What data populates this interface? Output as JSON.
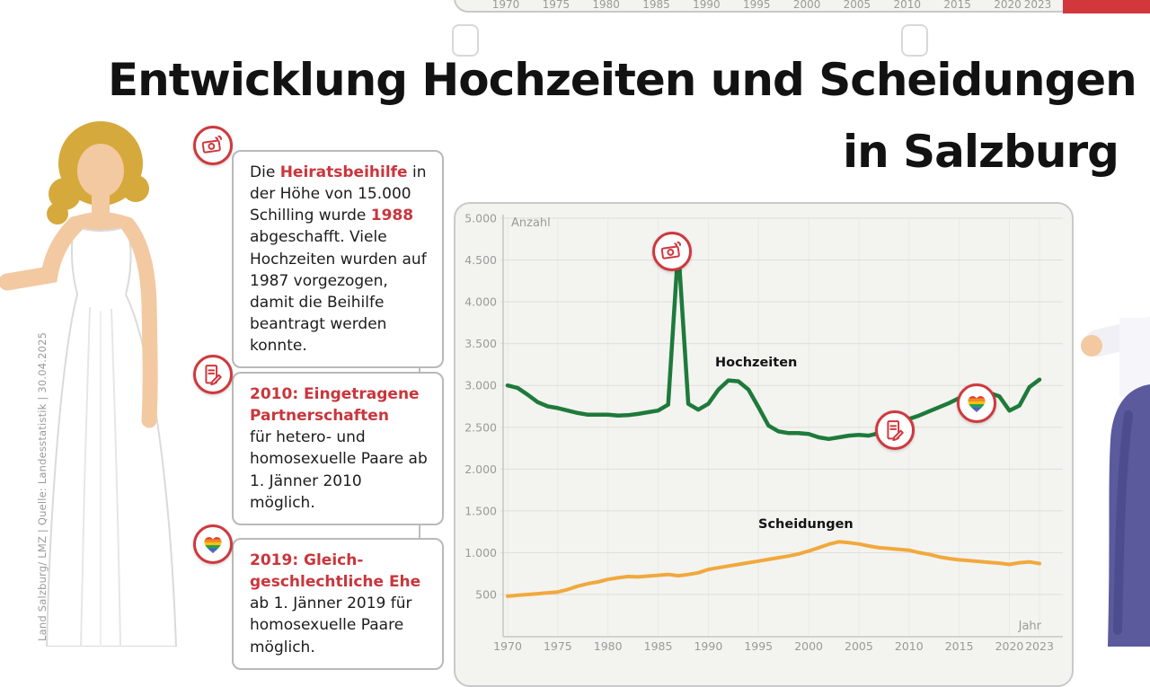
{
  "credit": "Land Salzburg/ LMZ | Quelle: Landesstatistik | 30.04.2025",
  "title": {
    "line1": "Entwicklung Hochzeiten und Scheidungen",
    "line2": "in Salzburg"
  },
  "logo": {
    "name": "Land Salzburg",
    "color": "#d2373b"
  },
  "colors": {
    "accent_red": "#cf383c",
    "hochzeiten_green": "#1e7a3a",
    "scheidungen_orange": "#f0a93c",
    "panel_bg": "#f3f3f0"
  },
  "callouts": [
    {
      "icon": "banknote-icon",
      "segments": [
        {
          "text": "Die ",
          "red": false
        },
        {
          "text": "Heiratsbeihilfe",
          "red": true
        },
        {
          "text": " in der Höhe von 15.000 Schilling wurde ",
          "red": false
        },
        {
          "text": "1988",
          "red": true
        },
        {
          "text": " abgeschafft. Viele Hochzeiten wurden auf 1987 vorgezogen, damit die Beihilfe beantragt werden konnte.",
          "red": false
        }
      ]
    },
    {
      "icon": "contract-icon",
      "heading": "2010: Eingetragene Partnerschaften",
      "body": "für hetero- und homosexuelle Paare ab 1. Jänner 2010 möglich."
    },
    {
      "icon": "rainbow-heart-icon",
      "heading": "2019: Gleich-geschlechtliche Ehe",
      "body": "ab 1. Jänner 2019 für homosexuelle Paare möglich."
    }
  ],
  "chart_data": {
    "type": "line",
    "title": "",
    "ylabel": "Anzahl",
    "xlabel": "Jahr",
    "ylim": [
      0,
      5000
    ],
    "xlim": [
      1970,
      2023
    ],
    "grid": true,
    "yticks": [
      500,
      1000,
      1500,
      2000,
      2500,
      3000,
      3500,
      4000,
      4500,
      5000
    ],
    "ytick_labels": [
      "500",
      "1.000",
      "1.500",
      "2.000",
      "2.500",
      "3.000",
      "3.500",
      "4.000",
      "4.500",
      "5.000"
    ],
    "xticks": [
      1970,
      1975,
      1980,
      1985,
      1990,
      1995,
      2000,
      2005,
      2010,
      2015,
      2020,
      2023
    ],
    "series": [
      {
        "name": "Hochzeiten",
        "color": "#1e7a3a",
        "x_from": 1970,
        "values": [
          3000,
          2970,
          2890,
          2800,
          2750,
          2730,
          2700,
          2670,
          2650,
          2650,
          2650,
          2640,
          2645,
          2660,
          2680,
          2700,
          2770,
          4650,
          2780,
          2710,
          2780,
          2950,
          3060,
          3050,
          2950,
          2740,
          2520,
          2450,
          2430,
          2430,
          2420,
          2380,
          2360,
          2380,
          2400,
          2410,
          2400,
          2430,
          2480,
          2530,
          2600,
          2640,
          2690,
          2740,
          2790,
          2850,
          2890,
          2905,
          2910,
          2870,
          2700,
          2760,
          2980,
          3070
        ]
      },
      {
        "name": "Scheidungen",
        "color": "#f0a93c",
        "x_from": 1970,
        "values": [
          480,
          490,
          500,
          510,
          520,
          530,
          560,
          600,
          630,
          650,
          680,
          700,
          715,
          710,
          720,
          730,
          740,
          725,
          740,
          760,
          800,
          820,
          840,
          860,
          880,
          900,
          920,
          940,
          960,
          985,
          1020,
          1060,
          1100,
          1130,
          1120,
          1105,
          1080,
          1060,
          1050,
          1040,
          1030,
          1000,
          980,
          950,
          930,
          915,
          905,
          895,
          885,
          875,
          860,
          880,
          890,
          870
        ]
      }
    ],
    "annotations": [
      {
        "icon": "banknote-icon",
        "year": 1986.4,
        "value": 4600
      },
      {
        "icon": "contract-icon",
        "year": 2008.6,
        "value": 2465
      },
      {
        "icon": "rainbow-heart-icon",
        "year": 2016.7,
        "value": 2790
      }
    ]
  }
}
